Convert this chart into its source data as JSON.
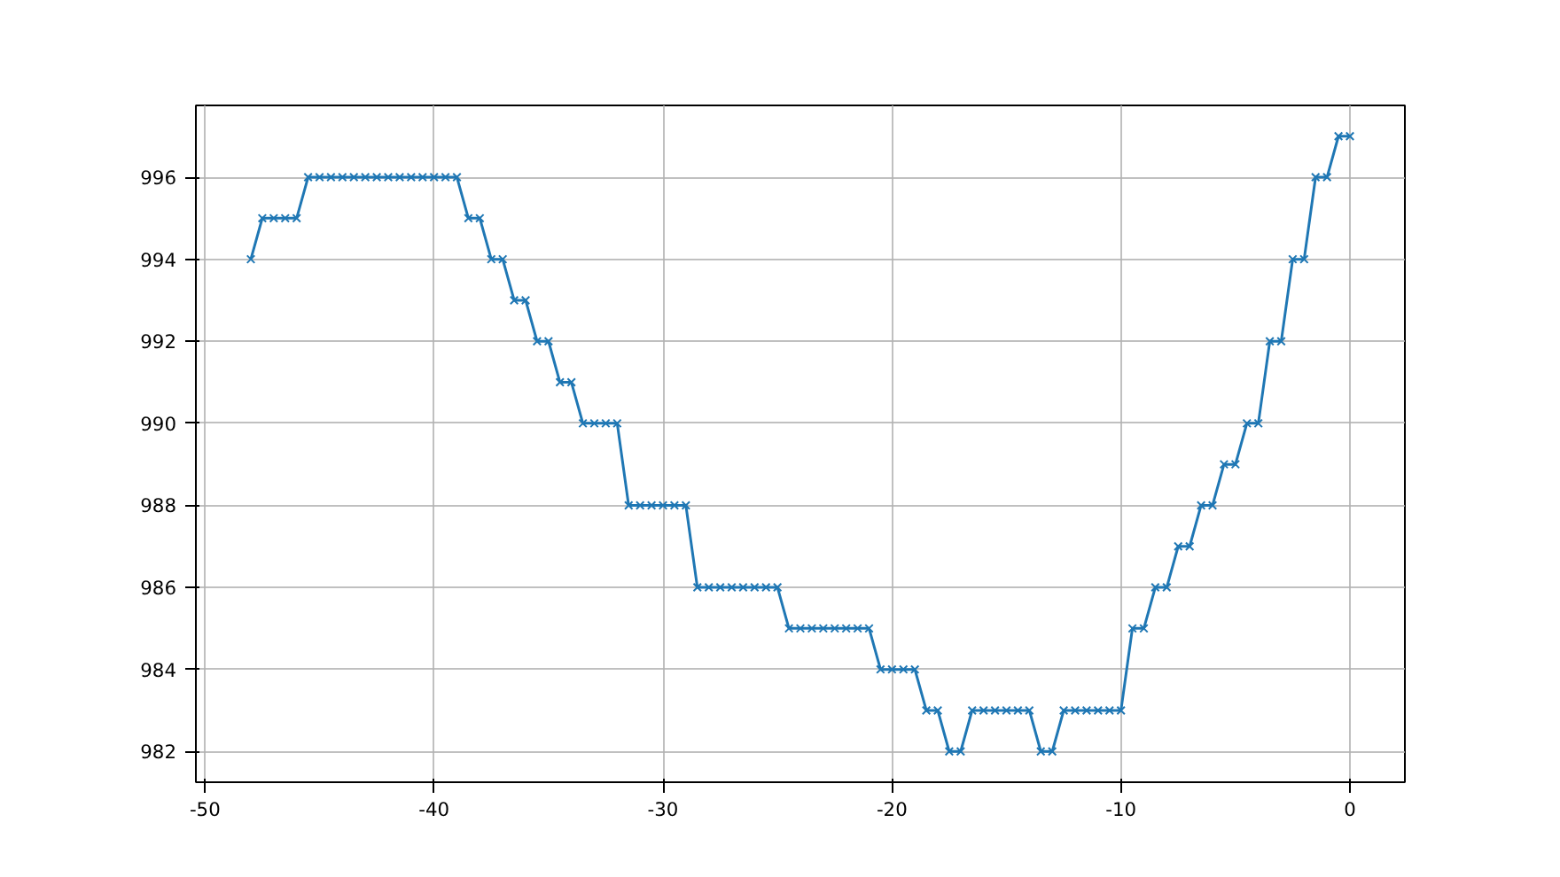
{
  "chart_data": {
    "type": "line",
    "x": [
      -48,
      -47.5,
      -47,
      -46.5,
      -46,
      -45.5,
      -45,
      -44.5,
      -44,
      -43.5,
      -43,
      -42.5,
      -42,
      -41.5,
      -41,
      -40.5,
      -40,
      -39.5,
      -39,
      -38.5,
      -38,
      -37.5,
      -37,
      -36.5,
      -36,
      -35.5,
      -35,
      -34.5,
      -34,
      -33.5,
      -33,
      -32.5,
      -32,
      -31.5,
      -31,
      -30.5,
      -30,
      -29.5,
      -29,
      -28.5,
      -28,
      -27.5,
      -27,
      -26.5,
      -26,
      -25.5,
      -25,
      -24.5,
      -24,
      -23.5,
      -23,
      -22.5,
      -22,
      -21.5,
      -21,
      -20.5,
      -20,
      -19.5,
      -19,
      -18.5,
      -18,
      -17.5,
      -17,
      -16.5,
      -16,
      -15.5,
      -15,
      -14.5,
      -14,
      -13.5,
      -13,
      -12.5,
      -12,
      -11.5,
      -11,
      -10.5,
      -10,
      -9.5,
      -9,
      -8.5,
      -8,
      -7.5,
      -7,
      -6.5,
      -6,
      -5.5,
      -5,
      -4.5,
      -4,
      -3.5,
      -3,
      -2.5,
      -2,
      -1.5,
      -1,
      -0.5,
      0
    ],
    "series": [
      {
        "color": "#1f77b4",
        "values": [
          994,
          995,
          995,
          995,
          995,
          996,
          996,
          996,
          996,
          996,
          996,
          996,
          996,
          996,
          996,
          996,
          996,
          996,
          996,
          995,
          995,
          994,
          994,
          993,
          993,
          992,
          992,
          991,
          991,
          990,
          990,
          990,
          990,
          988,
          988,
          988,
          988,
          988,
          988,
          986,
          986,
          986,
          986,
          986,
          986,
          986,
          986,
          985,
          985,
          985,
          985,
          985,
          985,
          985,
          985,
          984,
          984,
          984,
          984,
          983,
          983,
          982,
          982,
          983,
          983,
          983,
          983,
          983,
          983,
          982,
          982,
          983,
          983,
          983,
          983,
          983,
          983,
          985,
          985,
          986,
          986,
          987,
          987,
          988,
          988,
          989,
          989,
          990,
          990,
          992,
          992,
          994,
          994,
          996,
          996,
          997,
          997
        ]
      }
    ],
    "xlim": [
      -50.4,
      2.4
    ],
    "ylim": [
      981.25,
      997.75
    ],
    "xticks": [
      -50,
      -40,
      -30,
      -20,
      -10,
      0
    ],
    "yticks": [
      982,
      984,
      986,
      988,
      990,
      992,
      994,
      996
    ],
    "grid": true,
    "marker": "cross",
    "line_style": "solid"
  }
}
